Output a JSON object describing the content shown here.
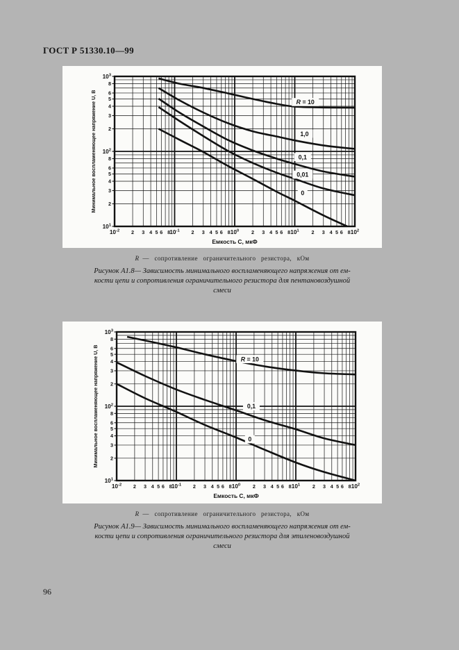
{
  "page": {
    "header": "ГОСТ Р 51330.10—99",
    "page_number": "96",
    "background_color": "#b4b4b4",
    "paper_color": "#fbfbf9",
    "ink_color": "#121212"
  },
  "figures": [
    {
      "id": "A1.8",
      "note_symbol": "R",
      "note_text": "— сопротивление ограничительного резистора, кОм",
      "caption_lines": [
        "Рисунок А1.8— Зависимость минимального воспламеняющего напряжения от ем-",
        "кости цепи и сопротивления ограничительного резистора для пентановоздушной",
        "смеси"
      ]
    },
    {
      "id": "A1.9",
      "note_symbol": "R",
      "note_text": "— сопротивление ограничительного резистора, кОм",
      "caption_lines": [
        "Рисунок А1.9— Зависимость минимального воспламеняющего напряжения от ем-",
        "кости цепи и сопротивления ограничительного резистора для этиленовоздушной",
        "смеси"
      ]
    }
  ],
  "chart_data": [
    {
      "type": "line",
      "title": "Минимальное воспламеняющее напряжение пентановоздушной смеси",
      "xlabel": "Емкость С, мкФ",
      "ylabel": "Минимальное воспламеняющее напряжение U, В",
      "xscale": "log",
      "yscale": "log",
      "xlim": [
        0.01,
        100
      ],
      "ylim": [
        10,
        1000
      ],
      "grid": true,
      "x_minor_labels": [
        2,
        3,
        4,
        5,
        6,
        8
      ],
      "y_minor_labels": [
        8,
        6,
        5,
        4,
        3,
        2
      ],
      "legend_position": "on-curve",
      "series": [
        {
          "name": "R = 10 кОм",
          "label": "R = 10",
          "label_at": [
            15,
            455
          ],
          "points": [
            [
              0.054,
              940
            ],
            [
              0.12,
              800
            ],
            [
              0.3,
              700
            ],
            [
              0.8,
              590
            ],
            [
              2,
              500
            ],
            [
              5,
              430
            ],
            [
              10,
              395
            ],
            [
              30,
              385
            ],
            [
              100,
              382
            ]
          ]
        },
        {
          "name": "R = 1,0 кОм",
          "label": "1,0",
          "label_at": [
            14.5,
            172
          ],
          "points": [
            [
              0.054,
              700
            ],
            [
              0.12,
              480
            ],
            [
              0.3,
              330
            ],
            [
              0.8,
              235
            ],
            [
              2,
              185
            ],
            [
              5,
              158
            ],
            [
              10,
              140
            ],
            [
              30,
              120
            ],
            [
              100,
              108
            ]
          ]
        },
        {
          "name": "R = 0,1 кОм",
          "label": "0,1",
          "label_at": [
            13.5,
            84
          ],
          "points": [
            [
              0.054,
              505
            ],
            [
              0.12,
              330
            ],
            [
              0.3,
              215
            ],
            [
              0.8,
              140
            ],
            [
              2,
              103
            ],
            [
              5,
              80
            ],
            [
              10,
              68
            ],
            [
              30,
              54
            ],
            [
              100,
              46
            ]
          ]
        },
        {
          "name": "R = 0,01 кОм",
          "label": "0,01",
          "label_at": [
            13.5,
            49
          ],
          "points": [
            [
              0.054,
              390
            ],
            [
              0.12,
              255
            ],
            [
              0.3,
              160
            ],
            [
              0.8,
              100
            ],
            [
              2,
              70
            ],
            [
              5,
              52
            ],
            [
              10,
              43
            ],
            [
              30,
              32
            ],
            [
              100,
              26
            ]
          ]
        },
        {
          "name": "R = 0 кОм",
          "label": "0",
          "label_at": [
            13.5,
            28
          ],
          "points": [
            [
              0.054,
              200
            ],
            [
              0.12,
              143
            ],
            [
              0.3,
              98
            ],
            [
              0.8,
              63
            ],
            [
              2,
              43
            ],
            [
              5,
              29
            ],
            [
              10,
              22
            ],
            [
              30,
              14
            ],
            [
              75,
              10
            ]
          ]
        }
      ]
    },
    {
      "type": "line",
      "title": "Минимальное воспламеняющее напряжение этиленовоздушной смеси",
      "xlabel": "Емкость С, мкФ",
      "ylabel": "Минимальное воспламеняющее напряжение U, В",
      "xscale": "log",
      "yscale": "log",
      "xlim": [
        0.01,
        100
      ],
      "ylim": [
        10,
        1000
      ],
      "grid": true,
      "x_minor_labels": [
        2,
        3,
        4,
        5,
        6,
        8
      ],
      "y_minor_labels": [
        8,
        6,
        5,
        4,
        3,
        2
      ],
      "legend_position": "on-curve",
      "series": [
        {
          "name": "R = 10 кОм",
          "label": "R = 10",
          "label_at": [
            1.7,
            430
          ],
          "points": [
            [
              0.015,
              860
            ],
            [
              0.04,
              730
            ],
            [
              0.1,
              620
            ],
            [
              0.3,
              500
            ],
            [
              1,
              405
            ],
            [
              3,
              345
            ],
            [
              10,
              302
            ],
            [
              30,
              278
            ],
            [
              100,
              268
            ]
          ]
        },
        {
          "name": "R = 0,1 кОм",
          "label": "0,1",
          "label_at": [
            1.8,
            100
          ],
          "points": [
            [
              0.01,
              390
            ],
            [
              0.03,
              255
            ],
            [
              0.1,
              168
            ],
            [
              0.3,
              122
            ],
            [
              1,
              88
            ],
            [
              3,
              65
            ],
            [
              10,
              49
            ],
            [
              30,
              37
            ],
            [
              100,
              30
            ]
          ]
        },
        {
          "name": "R = 0 кОм",
          "label": "0",
          "label_at": [
            1.7,
            36
          ],
          "points": [
            [
              0.01,
              200
            ],
            [
              0.03,
              128
            ],
            [
              0.1,
              84
            ],
            [
              0.3,
              56
            ],
            [
              1,
              38
            ],
            [
              3,
              26
            ],
            [
              10,
              17.5
            ],
            [
              30,
              13
            ],
            [
              100,
              10
            ]
          ]
        }
      ]
    }
  ]
}
